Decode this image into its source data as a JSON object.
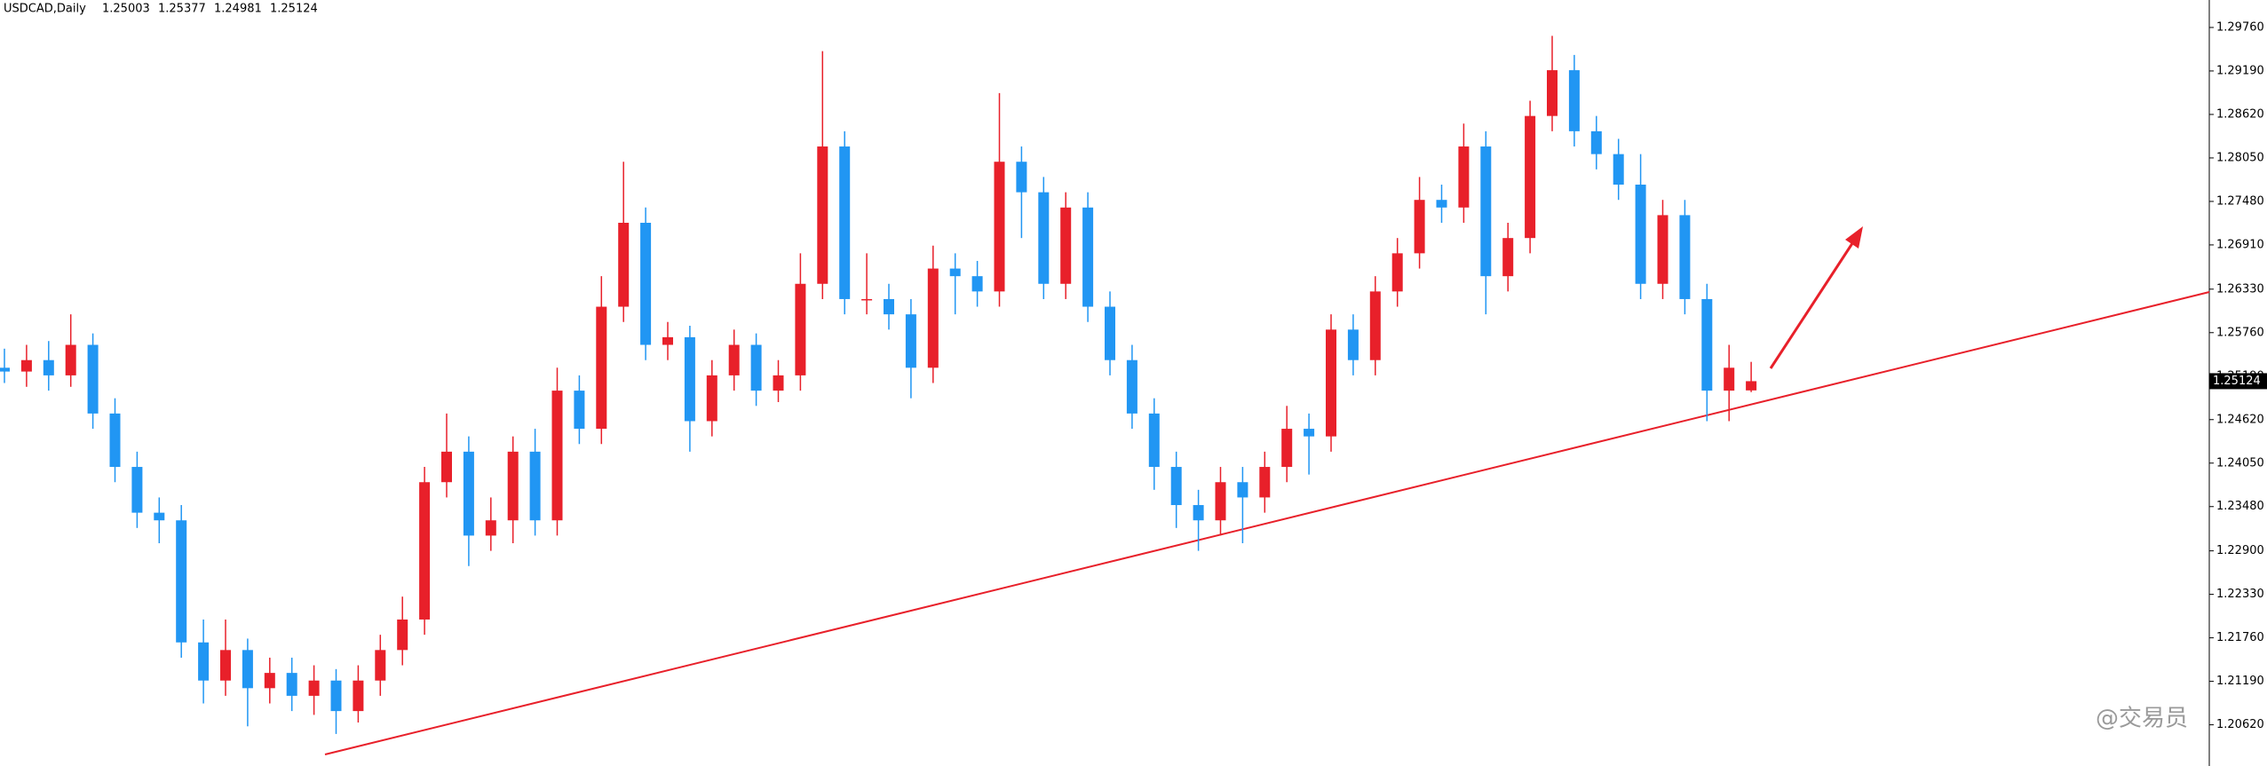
{
  "chart_data": {
    "type": "candlestick",
    "title": "USDCAD,Daily",
    "watermark": "@交易员",
    "up_color": "#e8202a",
    "down_color": "#2196f3",
    "ylim": [
      1.2008,
      1.3012
    ],
    "yticks": [
      {
        "value": 1.2976,
        "label": "1.29760"
      },
      {
        "value": 1.2919,
        "label": "1.29190"
      },
      {
        "value": 1.2862,
        "label": "1.28620"
      },
      {
        "value": 1.2805,
        "label": "1.28050"
      },
      {
        "value": 1.2748,
        "label": "1.27480"
      },
      {
        "value": 1.2691,
        "label": "1.26910"
      },
      {
        "value": 1.2633,
        "label": "1.26330"
      },
      {
        "value": 1.2576,
        "label": "1.25760"
      },
      {
        "value": 1.2519,
        "label": "1.25190"
      },
      {
        "value": 1.2462,
        "label": "1.24620"
      },
      {
        "value": 1.2405,
        "label": "1.24050"
      },
      {
        "value": 1.2348,
        "label": "1.23480"
      },
      {
        "value": 1.229,
        "label": "1.22900"
      },
      {
        "value": 1.2233,
        "label": "1.22330"
      },
      {
        "value": 1.2176,
        "label": "1.21760"
      },
      {
        "value": 1.2119,
        "label": "1.21190"
      },
      {
        "value": 1.2062,
        "label": "1.20620"
      }
    ],
    "open": [
      1.253,
      1.2525,
      1.254,
      1.252,
      1.256,
      1.247,
      1.24,
      1.234,
      1.233,
      1.217,
      1.212,
      1.216,
      1.211,
      1.213,
      1.21,
      1.212,
      1.208,
      1.212,
      1.216,
      1.22,
      1.238,
      1.242,
      1.231,
      1.233,
      1.242,
      1.233,
      1.25,
      1.245,
      1.261,
      1.272,
      1.256,
      1.257,
      1.246,
      1.252,
      1.256,
      1.25,
      1.252,
      1.264,
      1.282,
      1.262,
      1.262,
      1.26,
      1.253,
      1.266,
      1.265,
      1.263,
      1.28,
      1.276,
      1.264,
      1.274,
      1.261,
      1.254,
      1.247,
      1.24,
      1.235,
      1.233,
      1.238,
      1.236,
      1.24,
      1.245,
      1.244,
      1.258,
      1.254,
      1.263,
      1.268,
      1.275,
      1.274,
      1.282,
      1.265,
      1.27,
      1.286,
      1.292,
      1.284,
      1.281,
      1.277,
      1.264,
      1.273,
      1.262,
      1.25,
      1.25003
    ],
    "high": [
      1.2555,
      1.256,
      1.2565,
      1.26,
      1.2575,
      1.249,
      1.242,
      1.236,
      1.235,
      1.22,
      1.22,
      1.2175,
      1.215,
      1.215,
      1.214,
      1.2135,
      1.214,
      1.218,
      1.223,
      1.24,
      1.247,
      1.244,
      1.236,
      1.244,
      1.245,
      1.253,
      1.252,
      1.265,
      1.28,
      1.274,
      1.259,
      1.2585,
      1.254,
      1.258,
      1.2575,
      1.254,
      1.268,
      1.2945,
      1.284,
      1.268,
      1.264,
      1.262,
      1.269,
      1.268,
      1.267,
      1.289,
      1.282,
      1.278,
      1.276,
      1.276,
      1.263,
      1.256,
      1.249,
      1.242,
      1.237,
      1.24,
      1.24,
      1.242,
      1.248,
      1.247,
      1.26,
      1.26,
      1.265,
      1.27,
      1.278,
      1.277,
      1.285,
      1.284,
      1.272,
      1.288,
      1.2965,
      1.294,
      1.286,
      1.283,
      1.281,
      1.275,
      1.275,
      1.264,
      1.256,
      1.25377
    ],
    "low": [
      1.251,
      1.2505,
      1.25,
      1.2505,
      1.245,
      1.238,
      1.232,
      1.23,
      1.215,
      1.209,
      1.21,
      1.206,
      1.209,
      1.208,
      1.2075,
      1.205,
      1.2065,
      1.21,
      1.214,
      1.218,
      1.236,
      1.227,
      1.229,
      1.23,
      1.231,
      1.231,
      1.243,
      1.243,
      1.259,
      1.254,
      1.254,
      1.242,
      1.244,
      1.25,
      1.248,
      1.2485,
      1.25,
      1.262,
      1.26,
      1.26,
      1.258,
      1.249,
      1.251,
      1.26,
      1.261,
      1.261,
      1.27,
      1.262,
      1.262,
      1.259,
      1.252,
      1.245,
      1.237,
      1.232,
      1.229,
      1.231,
      1.23,
      1.234,
      1.238,
      1.239,
      1.242,
      1.252,
      1.252,
      1.261,
      1.266,
      1.272,
      1.272,
      1.26,
      1.263,
      1.268,
      1.284,
      1.282,
      1.279,
      1.275,
      1.262,
      1.262,
      1.26,
      1.246,
      1.246,
      1.24981
    ],
    "close": [
      1.2525,
      1.254,
      1.252,
      1.256,
      1.247,
      1.24,
      1.234,
      1.233,
      1.217,
      1.212,
      1.216,
      1.211,
      1.213,
      1.21,
      1.212,
      1.208,
      1.212,
      1.216,
      1.22,
      1.238,
      1.242,
      1.231,
      1.233,
      1.242,
      1.233,
      1.25,
      1.245,
      1.261,
      1.272,
      1.256,
      1.257,
      1.246,
      1.252,
      1.256,
      1.25,
      1.252,
      1.264,
      1.282,
      1.262,
      1.262,
      1.26,
      1.253,
      1.266,
      1.265,
      1.263,
      1.28,
      1.276,
      1.264,
      1.274,
      1.261,
      1.254,
      1.247,
      1.24,
      1.235,
      1.233,
      1.238,
      1.236,
      1.24,
      1.245,
      1.244,
      1.258,
      1.254,
      1.263,
      1.268,
      1.275,
      1.274,
      1.282,
      1.265,
      1.27,
      1.286,
      1.292,
      1.284,
      1.281,
      1.277,
      1.264,
      1.273,
      1.262,
      1.25,
      1.253,
      1.25124
    ]
  }
}
